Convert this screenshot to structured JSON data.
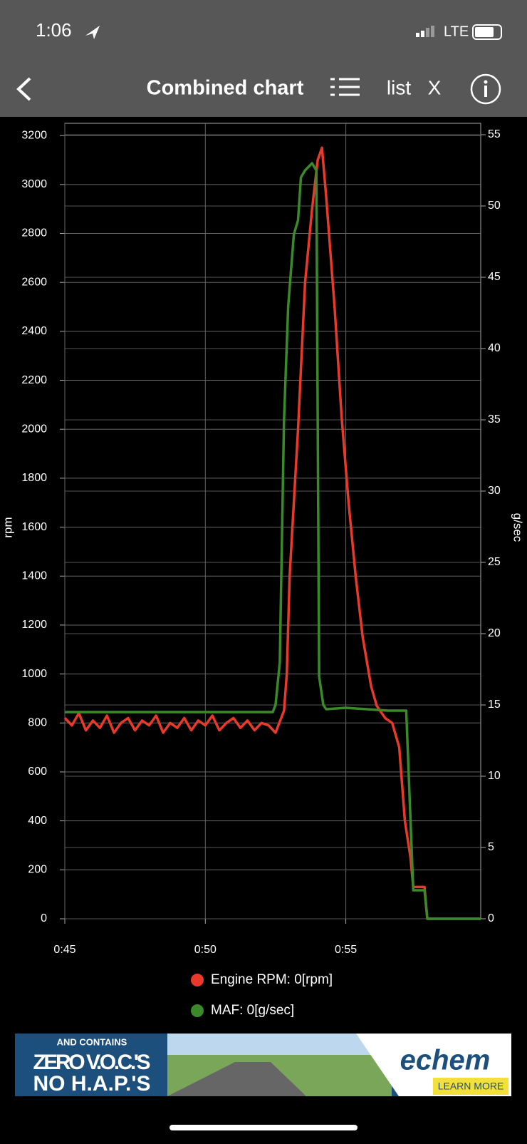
{
  "status_bar": {
    "time": "1:06",
    "network": "LTE"
  },
  "header": {
    "title": "Combined chart",
    "list_label": "list",
    "close_label": "X"
  },
  "chart_data": {
    "type": "line",
    "y_label": "rpm",
    "y2_label": "g/sec",
    "grid": true,
    "xlim": [
      45,
      59.8
    ],
    "xticks": [
      {
        "value": 45,
        "label": "0:45"
      },
      {
        "value": 50,
        "label": "0:50"
      },
      {
        "value": 55,
        "label": "0:55"
      }
    ],
    "ylim": [
      0,
      3250
    ],
    "yticks": [
      0,
      200,
      400,
      600,
      800,
      1000,
      1200,
      1400,
      1600,
      1800,
      2000,
      2200,
      2400,
      2600,
      2800,
      3000,
      3200
    ],
    "y2lim": [
      0,
      55.8
    ],
    "y2ticks": [
      0,
      5,
      10,
      15,
      20,
      25,
      30,
      35,
      40,
      45,
      50,
      55
    ],
    "series": [
      {
        "name": "Engine RPM: 0[rpm]",
        "color": "#e8392a",
        "x": [
          45,
          45.25,
          45.5,
          45.75,
          46,
          46.25,
          46.5,
          46.75,
          47,
          47.25,
          47.5,
          47.75,
          48,
          48.25,
          48.5,
          48.75,
          49,
          49.25,
          49.5,
          49.75,
          50,
          50.25,
          50.5,
          50.75,
          51,
          51.25,
          51.5,
          51.75,
          52,
          52.25,
          52.5,
          52.8,
          52.9,
          53,
          53.3,
          53.55,
          53.8,
          54,
          54.15,
          54.3,
          54.6,
          54.85,
          55.1,
          55.35,
          55.6,
          55.9,
          56.1,
          56.4,
          56.65,
          56.9,
          57.1,
          57.3,
          57.4,
          57.8,
          57.9,
          59.8
        ],
        "values": [
          820,
          790,
          840,
          770,
          810,
          780,
          830,
          760,
          800,
          820,
          770,
          810,
          790,
          830,
          760,
          800,
          780,
          820,
          770,
          810,
          790,
          830,
          770,
          800,
          820,
          780,
          810,
          770,
          800,
          790,
          760,
          850,
          1000,
          1400,
          2000,
          2600,
          2900,
          3100,
          3150,
          2950,
          2500,
          2050,
          1700,
          1400,
          1150,
          950,
          870,
          820,
          800,
          700,
          400,
          250,
          130,
          130,
          0,
          0
        ]
      },
      {
        "name": "MAF: 0[g/sec]",
        "color": "#3a8a2a",
        "axis": "y2",
        "x": [
          45,
          52.4,
          52.5,
          52.65,
          52.8,
          52.95,
          53.15,
          53.3,
          53.4,
          53.55,
          53.8,
          53.95,
          54.05,
          54.2,
          54.3,
          55,
          56.5,
          57.15,
          57.4,
          57.8,
          57.9,
          59.8
        ],
        "values": [
          14.5,
          14.5,
          15,
          18,
          35,
          43,
          48,
          49,
          52,
          52.5,
          53,
          52.5,
          17,
          15,
          14.7,
          14.8,
          14.6,
          14.6,
          2,
          2,
          0,
          0
        ]
      }
    ]
  },
  "ad": {
    "line1": "AND CONTAINS",
    "line2": "ZERO V.O.C.'S",
    "line3": "NO H.A.P.'S",
    "brand": "echem",
    "cta": "LEARN MORE"
  }
}
